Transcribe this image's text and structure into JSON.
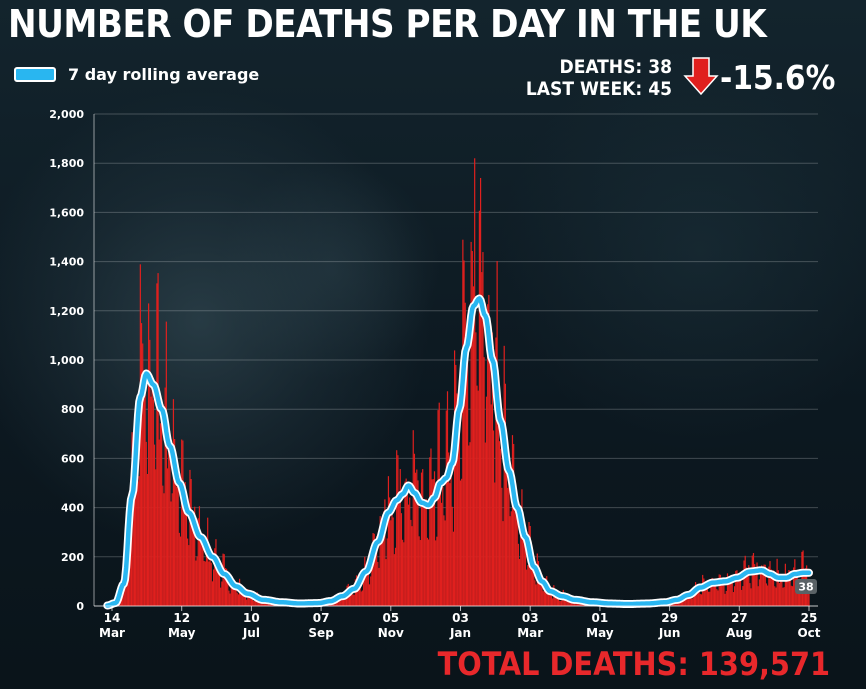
{
  "header": {
    "title": "NUMBER OF DEATHS PER DAY IN THE UK",
    "deaths_line": "DEATHS: 38",
    "last_week_line": "LAST WEEK: 45",
    "change": "-15.6%",
    "arrow_icon": "red-down-arrow-icon",
    "arrow_color": "#e0201e"
  },
  "footer": {
    "total": "TOTAL DEATHS: 139,571"
  },
  "chart_data": {
    "type": "bar",
    "legend": [
      {
        "label": "7 day rolling average",
        "color": "#29b6f0"
      }
    ],
    "bar_color": "#e0201e",
    "line_color": "#29b6f0",
    "ylim": [
      0,
      2000
    ],
    "yticks": [
      0,
      200,
      400,
      600,
      800,
      1000,
      1200,
      1400,
      1600,
      1800,
      2000
    ],
    "ytick_labels": [
      "0",
      "200",
      "400",
      "600",
      "800",
      "1,000",
      "1,200",
      "1,400",
      "1,600",
      "1,800",
      "2,000"
    ],
    "grid": true,
    "xticks": [
      {
        "date": "2020-03-14",
        "day": "14",
        "month": "Mar"
      },
      {
        "date": "2020-05-12",
        "day": "12",
        "month": "May"
      },
      {
        "date": "2020-07-10",
        "day": "10",
        "month": "Jul"
      },
      {
        "date": "2020-09-07",
        "day": "07",
        "month": "Sep"
      },
      {
        "date": "2020-11-05",
        "day": "05",
        "month": "Nov"
      },
      {
        "date": "2021-01-03",
        "day": "03",
        "month": "Jan"
      },
      {
        "date": "2021-03-03",
        "day": "03",
        "month": "Mar"
      },
      {
        "date": "2021-05-01",
        "day": "01",
        "month": "May"
      },
      {
        "date": "2021-06-29",
        "day": "29",
        "month": "Jun"
      },
      {
        "date": "2021-08-27",
        "day": "27",
        "month": "Aug"
      },
      {
        "date": "2021-10-25",
        "day": "25",
        "month": "Oct"
      }
    ],
    "daily_start": "2020-03-10",
    "daily_end": "2021-10-25",
    "rolling_average_points": [
      [
        "2020-03-10",
        2
      ],
      [
        "2020-03-17",
        12
      ],
      [
        "2020-03-24",
        90
      ],
      [
        "2020-03-31",
        450
      ],
      [
        "2020-04-07",
        850
      ],
      [
        "2020-04-12",
        945
      ],
      [
        "2020-04-18",
        900
      ],
      [
        "2020-04-25",
        800
      ],
      [
        "2020-05-02",
        650
      ],
      [
        "2020-05-10",
        500
      ],
      [
        "2020-05-18",
        380
      ],
      [
        "2020-05-28",
        280
      ],
      [
        "2020-06-07",
        200
      ],
      [
        "2020-06-17",
        130
      ],
      [
        "2020-06-27",
        80
      ],
      [
        "2020-07-07",
        50
      ],
      [
        "2020-07-20",
        25
      ],
      [
        "2020-08-05",
        15
      ],
      [
        "2020-08-20",
        10
      ],
      [
        "2020-09-05",
        12
      ],
      [
        "2020-09-15",
        20
      ],
      [
        "2020-09-25",
        40
      ],
      [
        "2020-10-05",
        70
      ],
      [
        "2020-10-15",
        140
      ],
      [
        "2020-10-25",
        260
      ],
      [
        "2020-11-03",
        380
      ],
      [
        "2020-11-10",
        430
      ],
      [
        "2020-11-15",
        455
      ],
      [
        "2020-11-20",
        490
      ],
      [
        "2020-11-25",
        460
      ],
      [
        "2020-12-01",
        420
      ],
      [
        "2020-12-07",
        410
      ],
      [
        "2020-12-12",
        440
      ],
      [
        "2020-12-17",
        500
      ],
      [
        "2020-12-22",
        520
      ],
      [
        "2020-12-27",
        580
      ],
      [
        "2021-01-02",
        800
      ],
      [
        "2021-01-08",
        1050
      ],
      [
        "2021-01-14",
        1220
      ],
      [
        "2021-01-19",
        1250
      ],
      [
        "2021-01-24",
        1180
      ],
      [
        "2021-01-30",
        1000
      ],
      [
        "2021-02-06",
        750
      ],
      [
        "2021-02-13",
        550
      ],
      [
        "2021-02-20",
        400
      ],
      [
        "2021-02-27",
        280
      ],
      [
        "2021-03-06",
        160
      ],
      [
        "2021-03-13",
        100
      ],
      [
        "2021-03-20",
        60
      ],
      [
        "2021-03-30",
        40
      ],
      [
        "2021-04-10",
        25
      ],
      [
        "2021-04-25",
        15
      ],
      [
        "2021-05-10",
        10
      ],
      [
        "2021-05-25",
        8
      ],
      [
        "2021-06-10",
        10
      ],
      [
        "2021-06-25",
        15
      ],
      [
        "2021-07-05",
        25
      ],
      [
        "2021-07-15",
        45
      ],
      [
        "2021-07-25",
        75
      ],
      [
        "2021-08-05",
        95
      ],
      [
        "2021-08-15",
        100
      ],
      [
        "2021-08-25",
        115
      ],
      [
        "2021-09-05",
        140
      ],
      [
        "2021-09-15",
        145
      ],
      [
        "2021-09-22",
        130
      ],
      [
        "2021-09-29",
        115
      ],
      [
        "2021-10-06",
        115
      ],
      [
        "2021-10-13",
        130
      ],
      [
        "2021-10-20",
        135
      ],
      [
        "2021-10-25",
        135
      ]
    ],
    "peak_bars": [
      [
        "2020-04-08",
        1150
      ],
      [
        "2020-04-14",
        1230
      ],
      [
        "2020-12-30",
        980
      ],
      [
        "2021-01-12",
        1480
      ],
      [
        "2021-01-15",
        1820
      ],
      [
        "2021-01-20",
        1740
      ],
      [
        "2021-10-19",
        220
      ]
    ],
    "last_value_label": "38"
  }
}
